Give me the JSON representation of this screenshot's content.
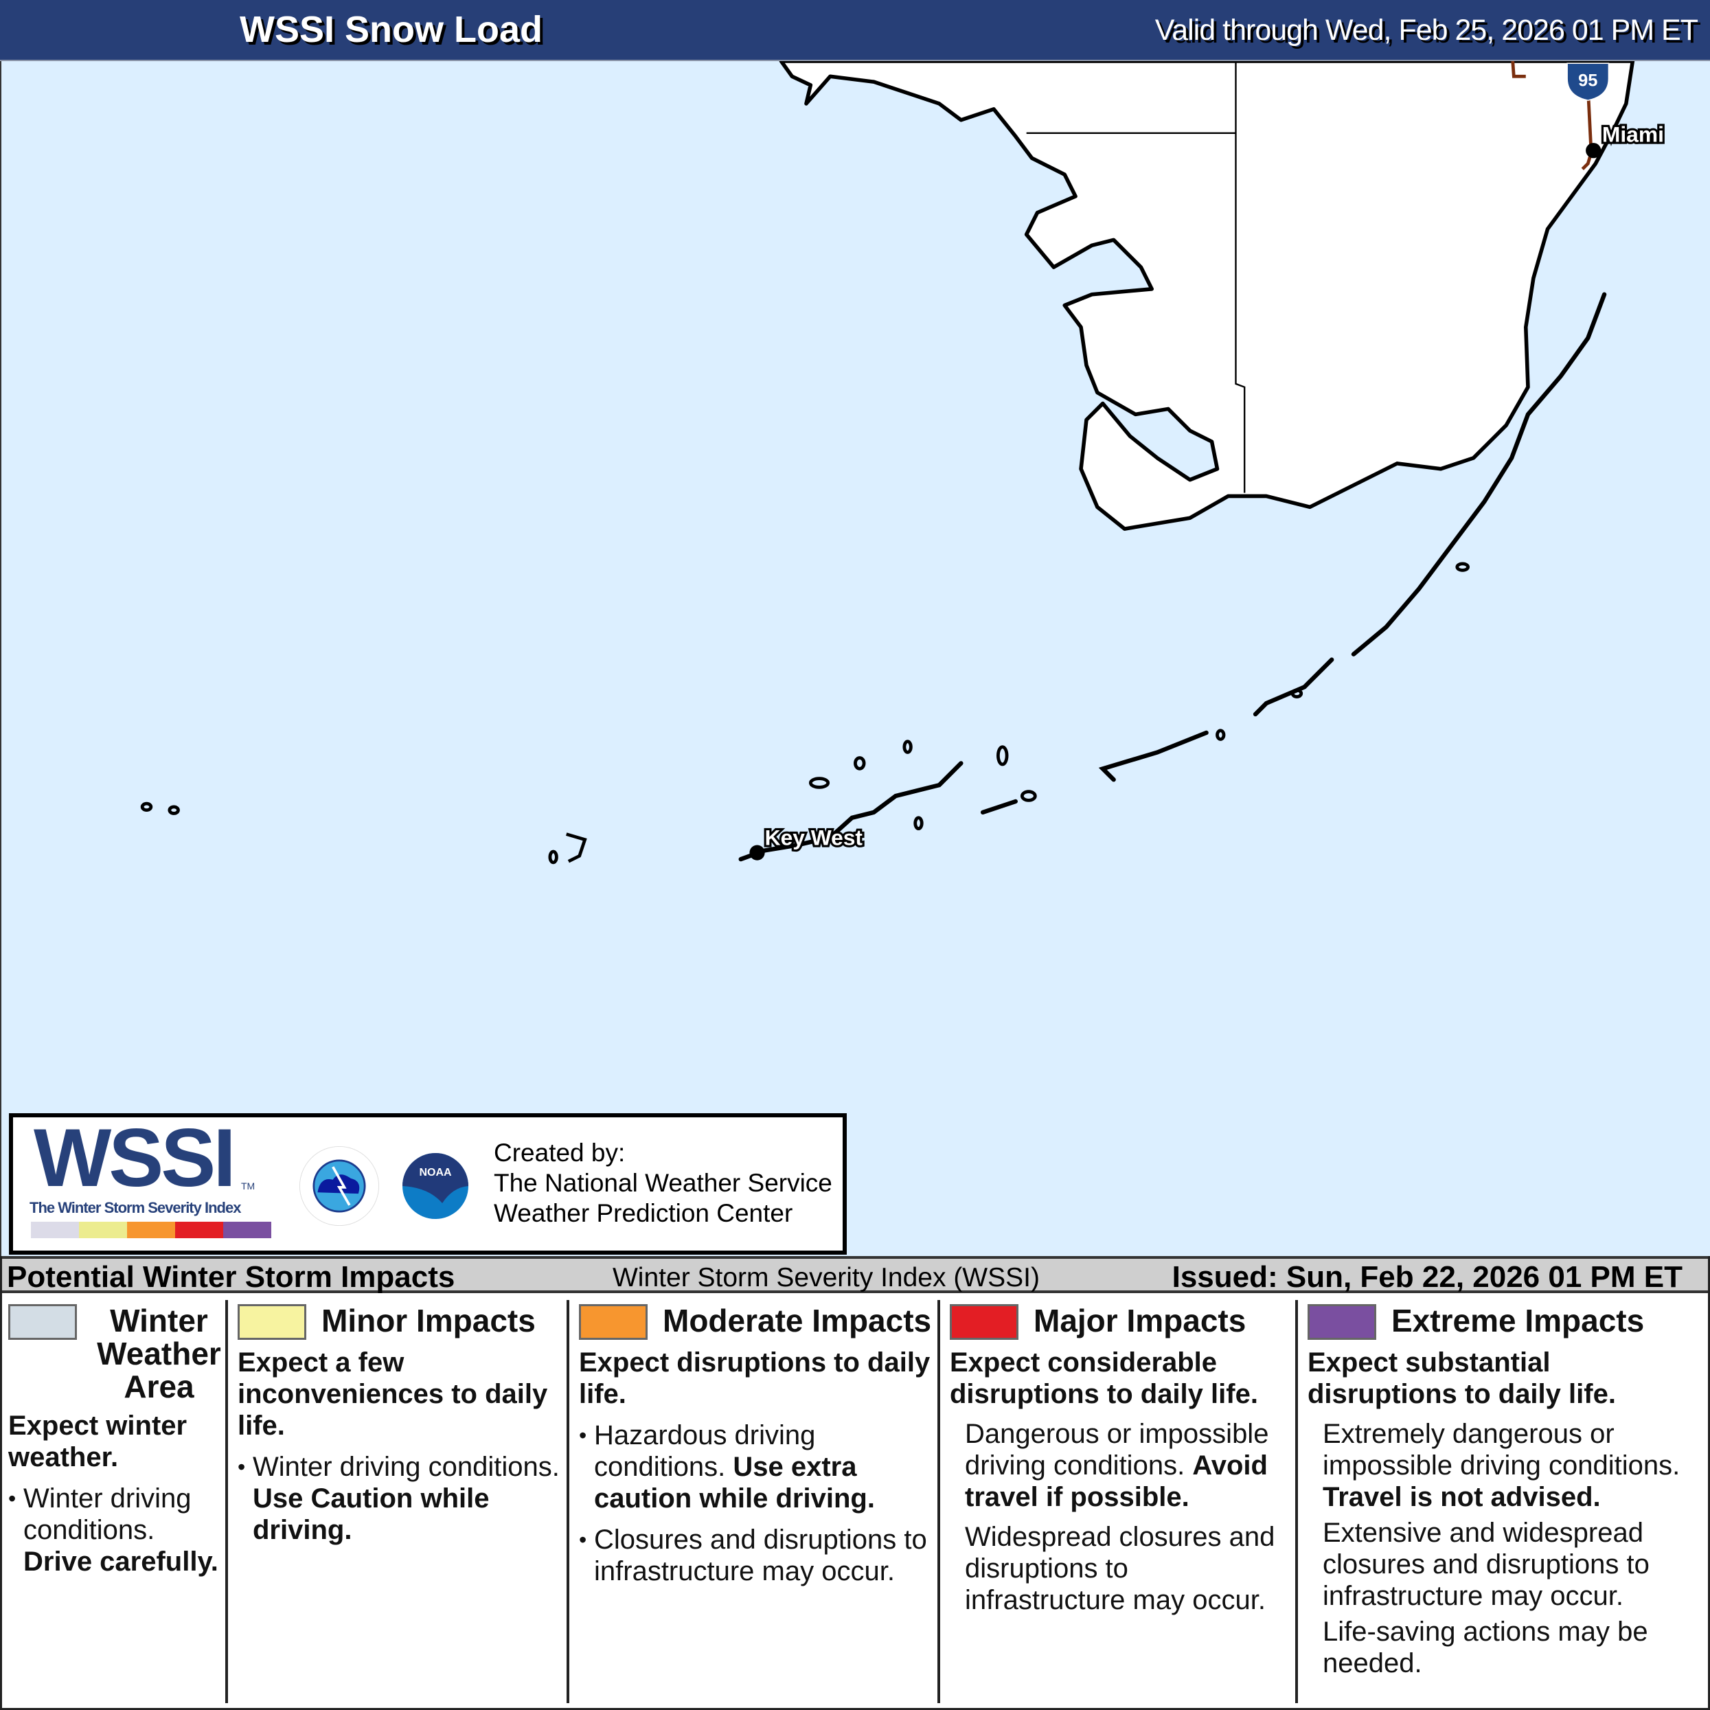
{
  "header": {
    "title": "WSSI Snow Load",
    "valid": "Valid through Wed, Feb 25, 2026 01 PM ET"
  },
  "map": {
    "cities": [
      {
        "name": "Miami"
      },
      {
        "name": "Key West"
      }
    ],
    "highway_shield": "95",
    "colors": {
      "water": "#dcefff",
      "land": "#ffffff",
      "interstate": "#7a2e0e",
      "shield": "#1f4a8c"
    }
  },
  "logo": {
    "wordmark": "WSSI",
    "tm": "TM",
    "subtitle": "The Winter Storm Severity Index",
    "agency1": "NATIONAL WEATHER SERVICE",
    "agency2": "NOAA",
    "created_by": "Created by:",
    "org1": "The National Weather Service",
    "org2": "Weather Prediction Center"
  },
  "impacts": {
    "title": "Potential Winter Storm Impacts",
    "index_name": "Winter Storm Severity Index (WSSI)",
    "issued": "Issued: Sun, Feb 22, 2026 01 PM ET",
    "categories": [
      {
        "label": "Winter Weather Area",
        "color": "#d3dde5",
        "lead": "Expect winter weather.",
        "items": [
          {
            "text": "Winter driving conditions.",
            "bold": "Drive carefully."
          }
        ]
      },
      {
        "label": "Minor Impacts",
        "color": "#f7f3a0",
        "lead": "Expect a few inconveniences to daily life.",
        "items": [
          {
            "text": "Winter driving conditions. ",
            "bold": "Use Caution while driving."
          }
        ]
      },
      {
        "label": "Moderate Impacts",
        "color": "#f7962f",
        "lead": "Expect disruptions to daily life.",
        "items": [
          {
            "text": "Hazardous driving conditions. ",
            "bold": "Use extra caution while driving."
          },
          {
            "text": "Closures and disruptions to infrastructure may occur."
          }
        ]
      },
      {
        "label": "Major Impacts",
        "color": "#e31e24",
        "lead": "Expect considerable disruptions to daily life.",
        "items": [
          {
            "text": "Dangerous or impossible driving conditions. ",
            "bold": "Avoid travel if possible."
          },
          {
            "text": "Widespread closures and disruptions to infrastructure may occur."
          }
        ]
      },
      {
        "label": "Extreme Impacts",
        "color": "#7a4fa0",
        "lead": "Expect substantial disruptions to daily life.",
        "items": [
          {
            "text": "Extremely dangerous or impossible driving conditions. ",
            "bold": "Travel is not advised."
          },
          {
            "text": "Extensive and widespread closures and disruptions to infrastructure may occur."
          },
          {
            "text": "Life-saving actions may be needed."
          }
        ]
      }
    ]
  }
}
